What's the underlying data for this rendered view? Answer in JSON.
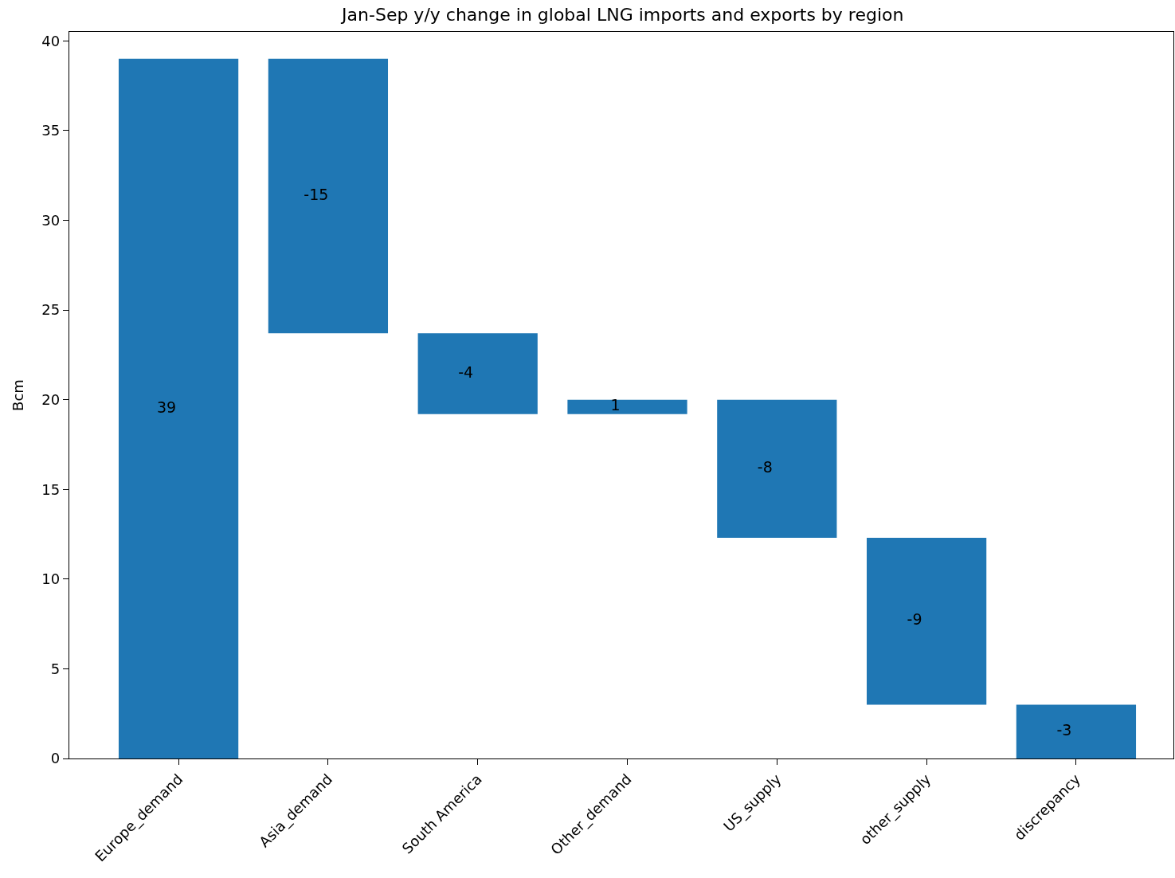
{
  "chart_data": {
    "type": "bar",
    "title": "Jan-Sep y/y change in global LNG imports and exports by region",
    "ylabel": "Bcm",
    "categories": [
      "Europe_demand",
      "Asia_demand",
      "South America",
      "Other_demand",
      "US_supply",
      "other_supply",
      "discrepancy"
    ],
    "values": [
      39,
      -15.3,
      -4.5,
      0.8,
      -7.7,
      -9.3,
      -3.0
    ],
    "base": [
      0,
      39,
      23.7,
      19.2,
      20.0,
      12.3,
      3.0
    ],
    "value_labels": [
      "39",
      "-15",
      "-4",
      "1",
      "-8",
      "-9",
      "-3"
    ],
    "color": "#1f77b4",
    "ylim": [
      0,
      40.5
    ],
    "yticks": [
      0,
      5,
      10,
      15,
      20,
      25,
      30,
      35,
      40
    ]
  }
}
